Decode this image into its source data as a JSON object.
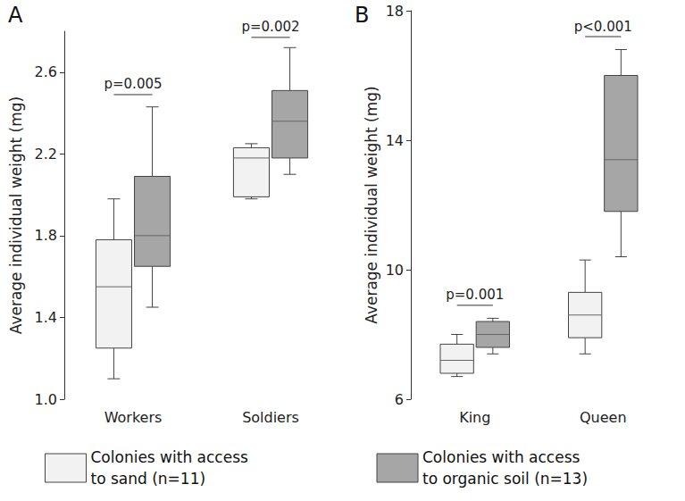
{
  "chart_data": [
    {
      "type": "boxplot",
      "title": "A",
      "ylabel": "Average individual weight (mg)",
      "categories": [
        "Workers",
        "Soldiers"
      ],
      "ylim": [
        1.0,
        2.8
      ],
      "yticks": [
        {
          "value": 1.0,
          "label": "1.0"
        },
        1.4,
        1.8,
        2.2,
        2.6
      ],
      "grid": false,
      "legend": "bottom",
      "series": [
        {
          "name": "Colonies with access to sand (n=11)",
          "color": "#f2f2f2",
          "values": [
            [
              1.1,
              1.25,
              1.55,
              1.78,
              1.98
            ],
            [
              1.98,
              1.99,
              2.18,
              2.23,
              2.25
            ]
          ]
        },
        {
          "name": "Colonies with access to organic soil (n=13)",
          "color": "#a6a6a6",
          "values": [
            [
              1.45,
              1.65,
              1.8,
              2.09,
              2.43
            ],
            [
              2.1,
              2.18,
              2.36,
              2.51,
              2.72
            ]
          ]
        }
      ],
      "annotations": [
        {
          "category": "Workers",
          "y": 2.49,
          "text": "p=0.005"
        },
        {
          "category": "Soldiers",
          "y": 2.77,
          "text": "p=0.002"
        }
      ]
    },
    {
      "type": "boxplot",
      "title": "B",
      "ylabel": "Average individual weight (mg)",
      "categories": [
        "King",
        "Queen"
      ],
      "ylim": [
        6,
        18
      ],
      "yticks": [
        6,
        10,
        14,
        18
      ],
      "grid": false,
      "legend": "bottom",
      "series": [
        {
          "name": "Colonies with access to sand (n=11)",
          "color": "#f2f2f2",
          "values": [
            [
              6.7,
              6.8,
              7.2,
              7.7,
              8.0
            ],
            [
              7.4,
              7.9,
              8.6,
              9.3,
              10.3
            ]
          ]
        },
        {
          "name": "Colonies with access to organic soil (n=13)",
          "color": "#a6a6a6",
          "values": [
            [
              7.4,
              7.6,
              8.0,
              8.4,
              8.5
            ],
            [
              10.4,
              11.8,
              13.4,
              16.0,
              16.8
            ]
          ]
        }
      ],
      "annotations": [
        {
          "category": "King",
          "y": 8.9,
          "text": "p=0.001"
        },
        {
          "category": "Queen",
          "y": 17.2,
          "text": "p<0.001"
        }
      ]
    }
  ]
}
